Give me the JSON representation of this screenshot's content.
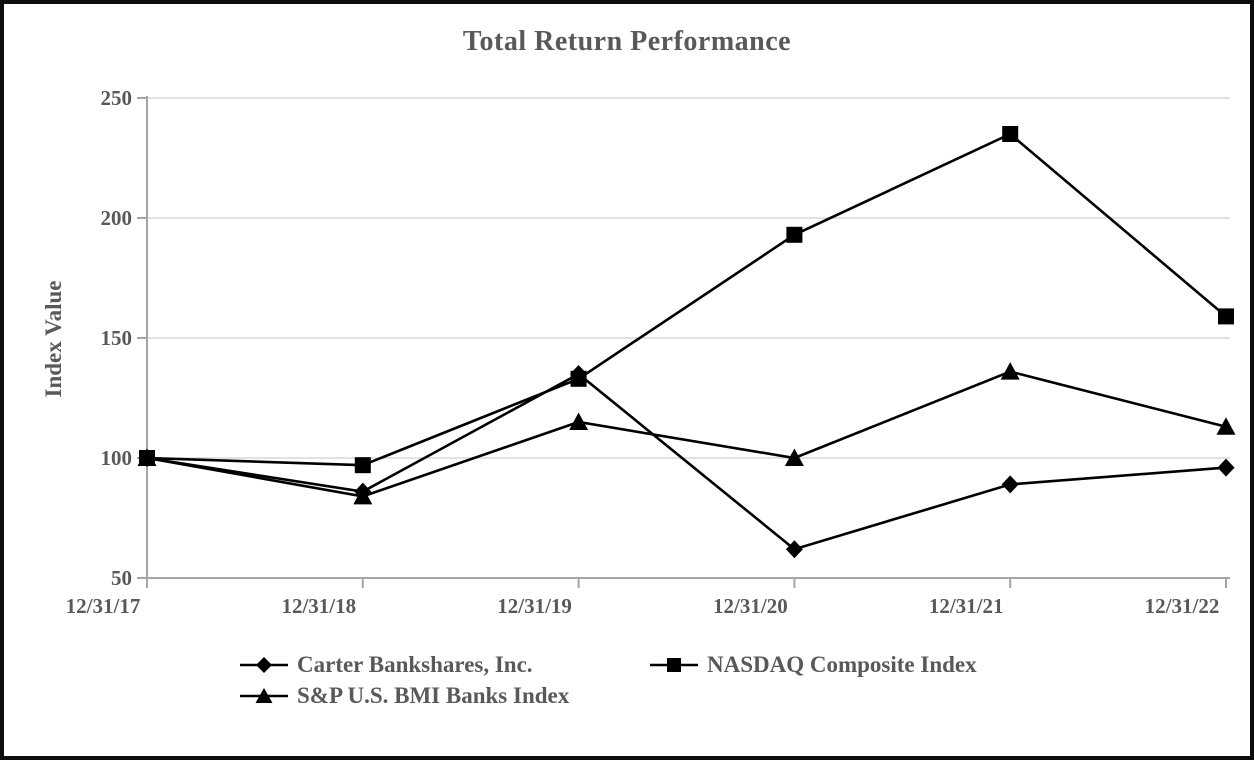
{
  "chart_data": {
    "type": "line",
    "title": "Total Return Performance",
    "xlabel": "",
    "ylabel": "Index Value",
    "categories": [
      "12/31/17",
      "12/31/18",
      "12/31/19",
      "12/31/20",
      "12/31/21",
      "12/31/22"
    ],
    "series": [
      {
        "name": "Carter Bankshares, Inc.",
        "marker": "diamond",
        "values": [
          100,
          86,
          135,
          62,
          89,
          96
        ]
      },
      {
        "name": "NASDAQ Composite Index",
        "marker": "square",
        "values": [
          100,
          97,
          133,
          193,
          235,
          159
        ]
      },
      {
        "name": "S&P U.S. BMI Banks Index",
        "marker": "triangle",
        "values": [
          100,
          84,
          115,
          100,
          136,
          113
        ]
      }
    ],
    "ylim": [
      50,
      250
    ],
    "y_ticks": [
      50,
      100,
      150,
      200,
      250
    ],
    "grid": true,
    "legend_position": "bottom",
    "legend_order": [
      "Carter Bankshares, Inc.",
      "NASDAQ Composite Index",
      "S&P U.S. BMI Banks Index"
    ]
  },
  "colors": {
    "series_line": "#000000",
    "marker_fill": "#000000",
    "axis_line": "#a6a6a6",
    "gridline": "#d9d9d9",
    "tick_label": "#595959",
    "title_text": "#595959",
    "legend_text": "#595959",
    "frame_border": "#0d0d0d",
    "background": "#ffffff"
  }
}
